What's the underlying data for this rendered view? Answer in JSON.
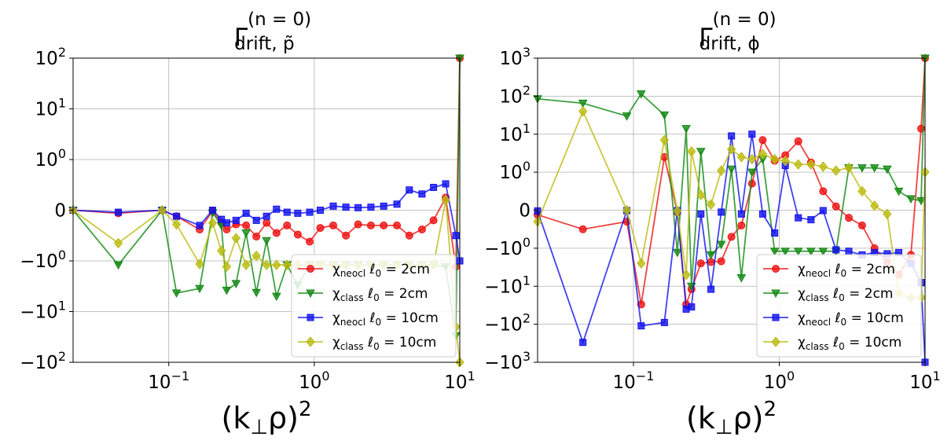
{
  "chart_data": [
    {
      "type": "line",
      "title": "Γ_drift,p̃^(n=0)",
      "title_parts": {
        "base": "Γ",
        "sup": "(n = 0)",
        "sub": "drift, p̃"
      },
      "xlabel": "(k⊥ρ)²",
      "xlabel_parts": {
        "base": "(k",
        "sub": "⊥",
        "tail": "ρ)",
        "sup": "2"
      },
      "xscale": "log",
      "yscale": "symlog",
      "xlim": [
        0.022,
        10
      ],
      "ylim": [
        -100,
        100
      ],
      "x_ticks": [
        {
          "value": 0.1,
          "base": "10",
          "exp": "−1"
        },
        {
          "value": 1,
          "base": "10",
          "exp": "0"
        },
        {
          "value": 10,
          "base": "10",
          "exp": "1"
        }
      ],
      "y_ticks": [
        {
          "value": 100,
          "base": "10",
          "exp": "2"
        },
        {
          "value": 10,
          "base": "10",
          "exp": "1"
        },
        {
          "value": 1,
          "base": "10",
          "exp": "0"
        },
        {
          "value": 0,
          "base": "0",
          "exp": ""
        },
        {
          "value": -1,
          "base": "−10",
          "exp": "0"
        },
        {
          "value": -10,
          "base": "−10",
          "exp": "1"
        },
        {
          "value": -100,
          "base": "−10",
          "exp": "2"
        }
      ],
      "grid": true,
      "legend_position": "lower-right",
      "x": [
        0.022,
        0.045,
        0.09,
        0.113,
        0.163,
        0.2,
        0.23,
        0.25,
        0.29,
        0.34,
        0.4,
        0.47,
        0.55,
        0.65,
        0.77,
        0.93,
        1.1,
        1.35,
        1.65,
        2.0,
        2.45,
        3.0,
        3.7,
        4.5,
        5.5,
        6.6,
        8.0,
        9.4,
        10.0
      ],
      "series": [
        {
          "name": "χ_neocl ℓ0 = 2cm",
          "label_parts": {
            "chi": "χ",
            "sub": "neocl",
            "rest": " ℓ",
            "sub2": "0",
            "end": " = 2cm"
          },
          "color": "#ee1111",
          "marker": "circle",
          "y": [
            0,
            -0.06,
            0,
            -0.12,
            -0.38,
            -0.02,
            -0.25,
            -0.38,
            -0.28,
            -0.3,
            -0.52,
            -0.25,
            -0.45,
            -0.3,
            -0.48,
            -0.62,
            -0.35,
            -0.3,
            -0.5,
            -0.28,
            -0.3,
            -0.3,
            -0.3,
            -0.5,
            -0.38,
            -0.2,
            0.25,
            -1.3,
            100
          ]
        },
        {
          "name": "χ_class ℓ0 = 2cm",
          "label_parts": {
            "chi": "χ",
            "sub": "class",
            "rest": " ℓ",
            "sub2": "0",
            "end": " = 2cm"
          },
          "color": "#118811",
          "marker": "triangle-down",
          "y": [
            0,
            -1.2,
            0,
            -4.3,
            -3.5,
            -0.05,
            -0.3,
            -3.8,
            -2.8,
            -0.45,
            -4.2,
            -0.6,
            -5,
            -1.2,
            -3,
            -1.2,
            -1.2,
            -1.2,
            -1.2,
            -1.2,
            -1.2,
            -1.2,
            -1.2,
            -1.2,
            -1.2,
            -1.2,
            -1.3,
            -30,
            100
          ]
        },
        {
          "name": "χ_neocl ℓ0 = 10cm",
          "label_parts": {
            "chi": "χ",
            "sub": "neocl",
            "rest": " ℓ",
            "sub2": "0",
            "end": " = 10cm"
          },
          "color": "#1111ee",
          "marker": "square",
          "y": [
            0,
            -0.04,
            0,
            -0.12,
            -0.3,
            0,
            -0.18,
            -0.25,
            -0.2,
            -0.06,
            -0.2,
            -0.12,
            0.02,
            -0.04,
            -0.06,
            -0.04,
            0,
            0.08,
            0.06,
            0.05,
            0.06,
            0.08,
            0.12,
            0.4,
            0.32,
            0.45,
            0.52,
            -0.5,
            -1.0
          ]
        },
        {
          "name": "χ_class ℓ0 = 10cm",
          "label_parts": {
            "chi": "χ",
            "sub": "class",
            "rest": " ℓ",
            "sub2": "0",
            "end": " = 10cm"
          },
          "color": "#bbbb11",
          "marker": "diamond",
          "y": [
            0,
            -0.65,
            0,
            -0.28,
            -1.15,
            -0.25,
            -0.8,
            -1.3,
            -0.55,
            -1.2,
            -0.9,
            -1.2,
            -1.2,
            -1.2,
            -1.2,
            -1.2,
            -1.2,
            -1.2,
            -1.2,
            -1.2,
            -1.2,
            -1.2,
            -1.2,
            -1.2,
            -1.2,
            -1.2,
            0.2,
            -20,
            -100
          ]
        }
      ]
    },
    {
      "type": "line",
      "title": "Γ_drift,φ^(n=0)",
      "title_parts": {
        "base": "Γ",
        "sup": "(n = 0)",
        "sub": "drift, ϕ"
      },
      "xlabel": "(k⊥ρ)²",
      "xlabel_parts": {
        "base": "(k",
        "sub": "⊥",
        "tail": "ρ)",
        "sup": "2"
      },
      "xscale": "log",
      "yscale": "symlog",
      "xlim": [
        0.022,
        10
      ],
      "ylim": [
        -1000,
        1000
      ],
      "x_ticks": [
        {
          "value": 0.1,
          "base": "10",
          "exp": "−1"
        },
        {
          "value": 1,
          "base": "10",
          "exp": "0"
        },
        {
          "value": 10,
          "base": "10",
          "exp": "1"
        }
      ],
      "y_ticks": [
        {
          "value": 1000,
          "base": "10",
          "exp": "3"
        },
        {
          "value": 100,
          "base": "10",
          "exp": "2"
        },
        {
          "value": 10,
          "base": "10",
          "exp": "1"
        },
        {
          "value": 1,
          "base": "10",
          "exp": "0"
        },
        {
          "value": 0,
          "base": "0",
          "exp": ""
        },
        {
          "value": -1,
          "base": "−10",
          "exp": "0"
        },
        {
          "value": -10,
          "base": "−10",
          "exp": "1"
        },
        {
          "value": -100,
          "base": "−10",
          "exp": "2"
        },
        {
          "value": -1000,
          "base": "−10",
          "exp": "3"
        }
      ],
      "grid": true,
      "legend_position": "lower-right",
      "x": [
        0.022,
        0.045,
        0.09,
        0.113,
        0.163,
        0.2,
        0.23,
        0.25,
        0.29,
        0.34,
        0.4,
        0.47,
        0.55,
        0.65,
        0.77,
        0.93,
        1.1,
        1.35,
        1.65,
        2.0,
        2.45,
        3.0,
        3.7,
        4.5,
        5.5,
        6.6,
        8.0,
        9.4,
        10.0
      ],
      "series": [
        {
          "name": "χ_neocl ℓ0 = 2cm",
          "label_parts": {
            "chi": "χ",
            "sub": "neocl",
            "rest": " ℓ",
            "sub2": "0",
            "end": " = 2cm"
          },
          "color": "#ee1111",
          "marker": "circle",
          "y": [
            -0.12,
            -0.5,
            -0.3,
            -30,
            2.5,
            -0.05,
            -30,
            -12,
            -2.5,
            -2.3,
            -2.2,
            -0.7,
            -0.4,
            0.7,
            7,
            2,
            2.8,
            6.5,
            1.8,
            0.5,
            0.1,
            -0.2,
            -0.4,
            -1.0,
            -2.3,
            -5,
            -1.5,
            14,
            1000
          ]
        },
        {
          "name": "χ_class ℓ0 = 2cm",
          "label_parts": {
            "chi": "χ",
            "sub": "class",
            "rest": " ℓ",
            "sub2": "0",
            "end": " = 2cm"
          },
          "color": "#118811",
          "marker": "triangle-down",
          "y": [
            85,
            65,
            30,
            115,
            32,
            -1.3,
            14,
            -10,
            3.5,
            -1.5,
            -0.9,
            1.2,
            -6,
            1,
            2.2,
            -1.2,
            -1.2,
            -1.2,
            -1.2,
            -1.2,
            -1.2,
            1.3,
            1.3,
            1.3,
            1.2,
            0.5,
            0.3,
            0.25,
            1000
          ]
        },
        {
          "name": "χ_neocl ℓ0 = 10cm",
          "label_parts": {
            "chi": "χ",
            "sub": "neocl",
            "rest": " ℓ",
            "sub2": "0",
            "end": " = 10cm"
          },
          "color": "#1111ee",
          "marker": "square",
          "y": [
            -0.02,
            -300,
            -0.01,
            -110,
            -90,
            -0.01,
            -40,
            -35,
            -0.1,
            -12,
            -0.05,
            9,
            -0.1,
            10,
            -0.1,
            -0.6,
            1.5,
            -0.2,
            -0.25,
            -0.01,
            -1.1,
            -1.2,
            -1.5,
            -1.3,
            -1.4,
            -1.3,
            -2.5,
            -8,
            -1000
          ]
        },
        {
          "name": "χ_class ℓ0 = 10cm",
          "label_parts": {
            "chi": "χ",
            "sub": "class",
            "rest": " ℓ",
            "sub2": "0",
            "end": " = 10cm"
          },
          "color": "#bbbb11",
          "marker": "diamond",
          "y": [
            -0.3,
            40,
            0,
            -2.5,
            7,
            -0.02,
            -5,
            3.5,
            0.4,
            0.15,
            1.1,
            4,
            2.5,
            2.2,
            3,
            2.2,
            2,
            1.6,
            1.6,
            1.4,
            1.1,
            1.3,
            0.5,
            0.12,
            -0.1,
            -15,
            -20,
            -20,
            1
          ]
        }
      ]
    }
  ]
}
